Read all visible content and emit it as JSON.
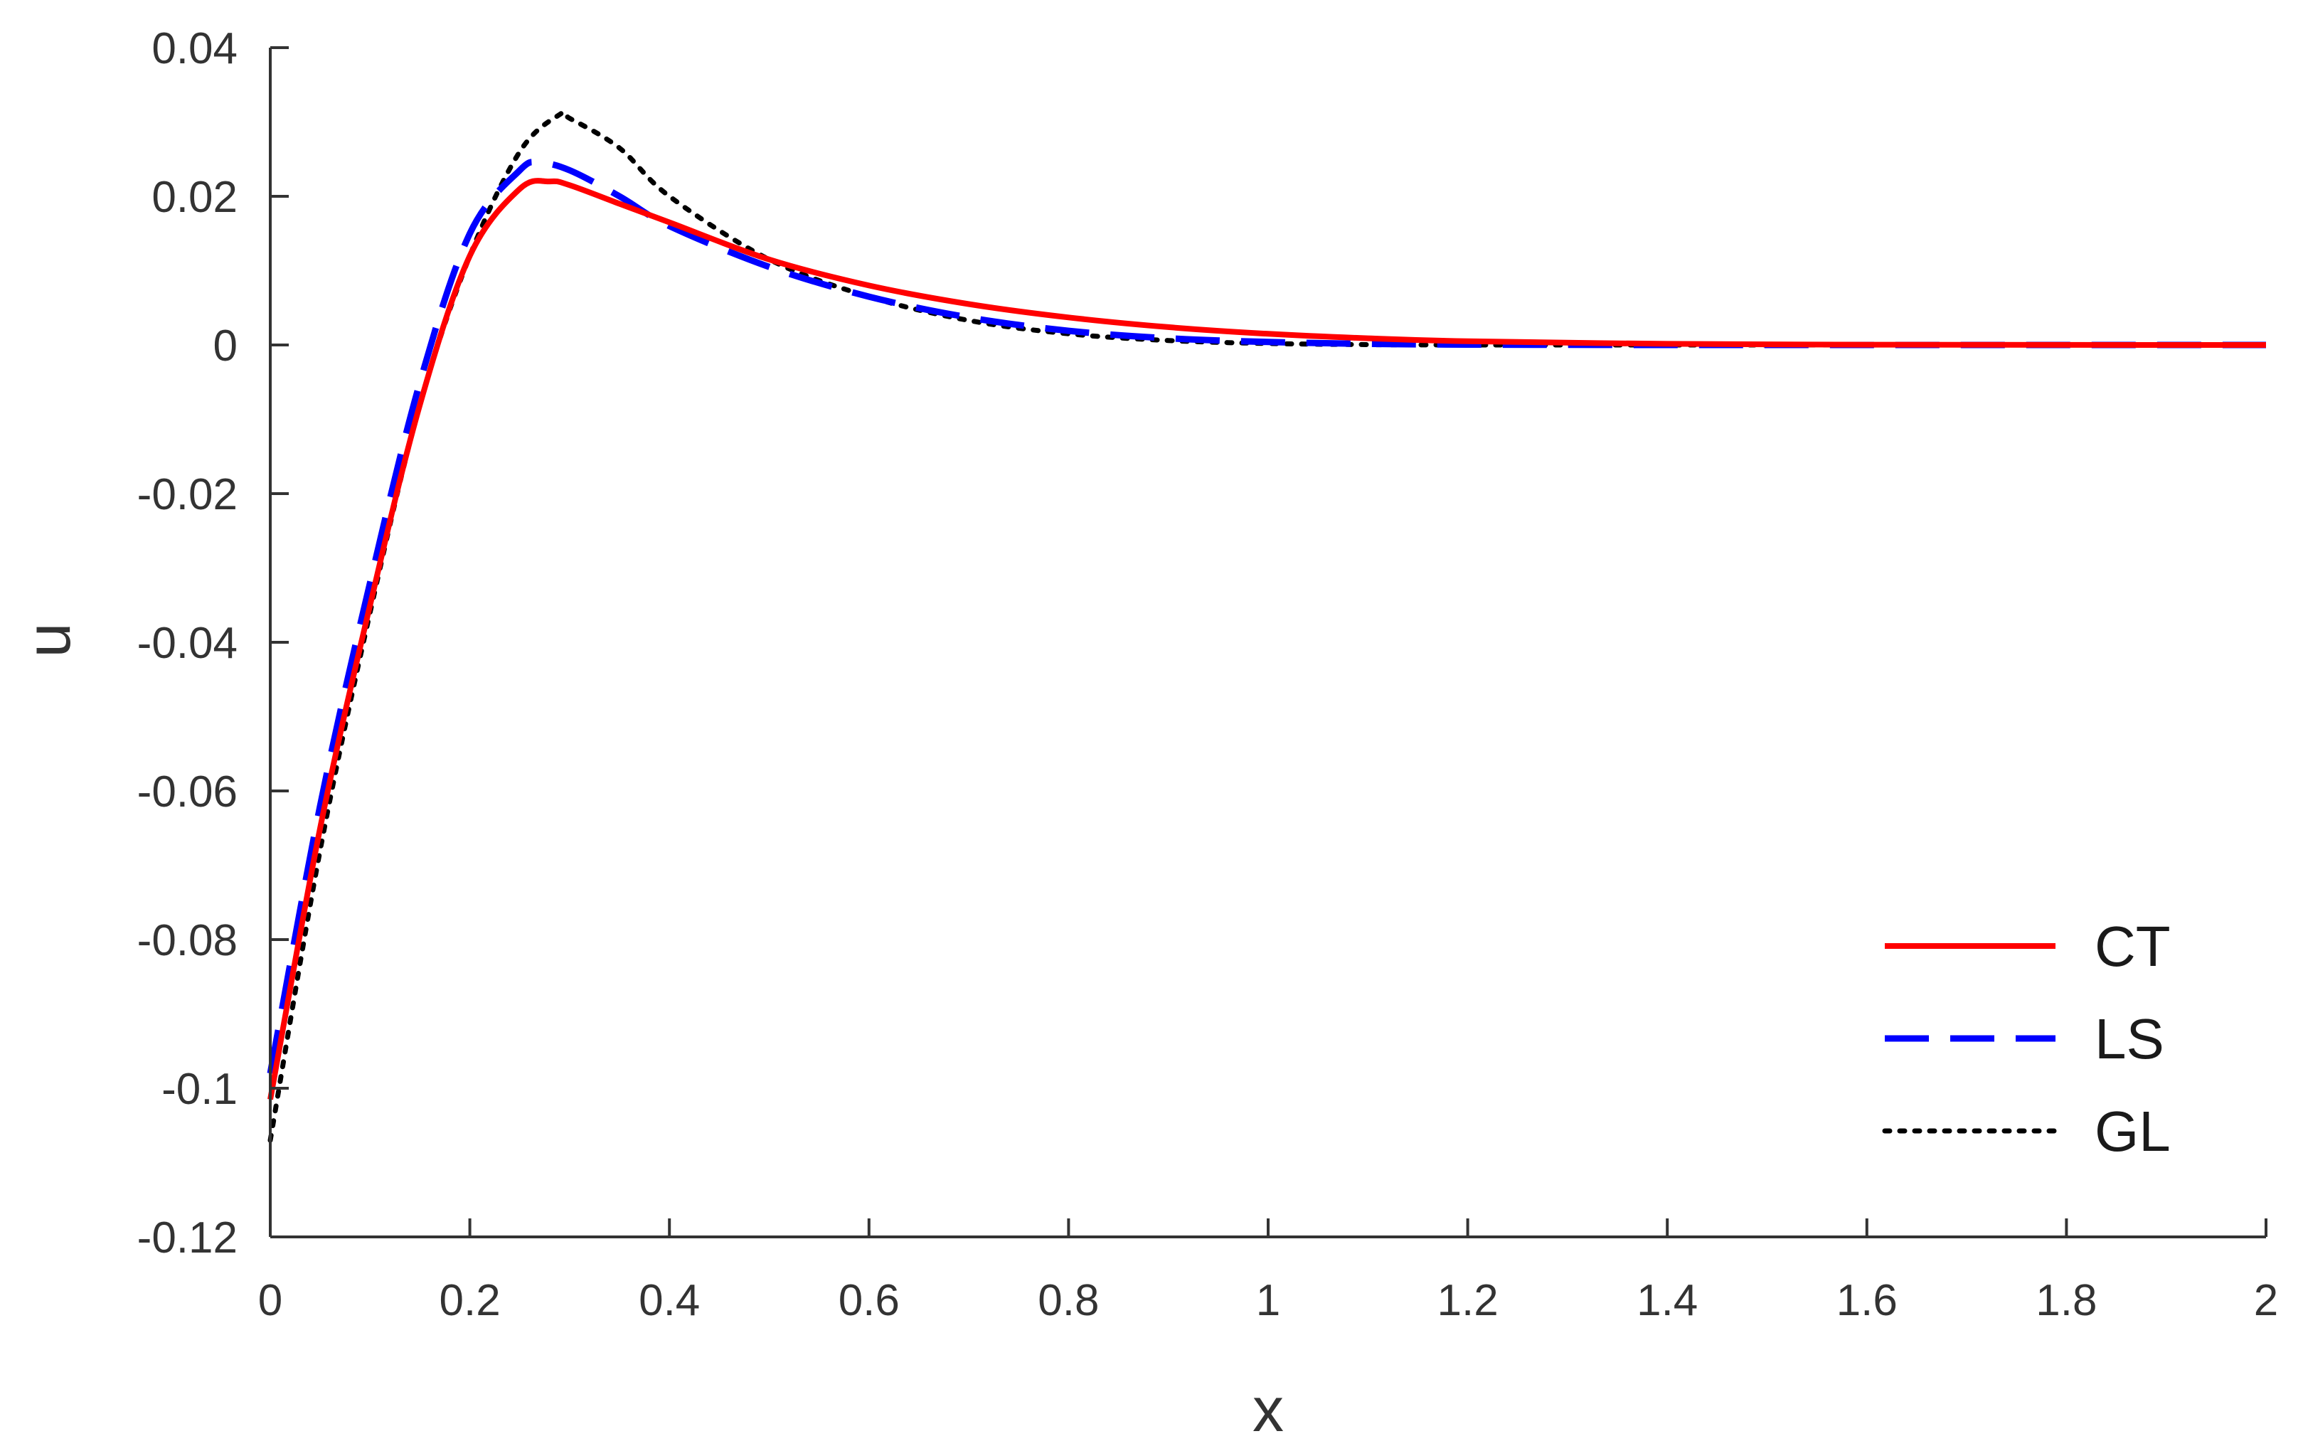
{
  "chart_data": {
    "type": "line",
    "title": "",
    "xlabel": "x",
    "ylabel": "u",
    "xlim": [
      0,
      2
    ],
    "ylim": [
      -0.12,
      0.04
    ],
    "xticks": [
      0,
      0.2,
      0.4,
      0.6,
      0.8,
      1,
      1.2,
      1.4,
      1.6,
      1.8,
      2
    ],
    "xtick_labels": [
      "0",
      "0.2",
      "0.4",
      "0.6",
      "0.8",
      "1",
      "1.2",
      "1.4",
      "1.6",
      "1.8",
      "2"
    ],
    "yticks": [
      -0.12,
      -0.1,
      -0.08,
      -0.06,
      -0.04,
      -0.02,
      0,
      0.02,
      0.04
    ],
    "ytick_labels": [
      "-0.12",
      "-0.1",
      "-0.08",
      "-0.06",
      "-0.04",
      "-0.02",
      "0",
      "0.02",
      "0.04"
    ],
    "grid": false,
    "legend_position": "bottom-right",
    "series": [
      {
        "name": "CT",
        "color": "#ff0000",
        "style": "solid",
        "x": [
          0,
          0.05,
          0.1,
          0.15,
          0.2,
          0.25,
          0.28,
          0.3,
          0.35,
          0.4,
          0.5,
          0.6,
          0.7,
          0.8,
          0.9,
          1.0,
          1.1,
          1.2,
          1.4,
          1.6,
          1.8,
          2.0
        ],
        "y": [
          -0.1015,
          -0.065,
          -0.035,
          -0.008,
          0.012,
          0.021,
          0.022,
          0.0215,
          0.019,
          0.0165,
          0.0115,
          0.008,
          0.0055,
          0.0037,
          0.0024,
          0.0015,
          0.0009,
          0.0005,
          0.00015,
          4e-05,
          1e-05,
          0
        ]
      },
      {
        "name": "LS",
        "color": "#0000ff",
        "style": "dashed",
        "x": [
          0,
          0.05,
          0.1,
          0.15,
          0.2,
          0.25,
          0.27,
          0.3,
          0.35,
          0.4,
          0.5,
          0.6,
          0.7,
          0.8,
          0.9,
          1.0,
          1.1,
          1.2,
          1.4,
          1.6,
          1.8,
          2.0
        ],
        "y": [
          -0.098,
          -0.062,
          -0.032,
          -0.005,
          0.015,
          0.0235,
          0.0245,
          0.0235,
          0.02,
          0.016,
          0.0105,
          0.0065,
          0.0037,
          0.0019,
          0.0009,
          0.0004,
          0.00015,
          5e-05,
          0,
          0,
          0,
          0
        ]
      },
      {
        "name": "GL",
        "color": "#000000",
        "style": "dotted",
        "x": [
          0,
          0.05,
          0.1,
          0.15,
          0.2,
          0.25,
          0.29,
          0.3,
          0.35,
          0.4,
          0.5,
          0.6,
          0.7,
          0.8,
          0.9,
          1.0,
          1.1,
          1.2,
          1.4,
          1.6,
          1.8,
          2.0
        ],
        "y": [
          -0.107,
          -0.068,
          -0.036,
          -0.008,
          0.012,
          0.026,
          0.031,
          0.0305,
          0.0265,
          0.02,
          0.0115,
          0.0065,
          0.0033,
          0.0015,
          0.0006,
          0.0002,
          5e-05,
          0,
          0,
          0,
          0,
          0
        ]
      }
    ]
  }
}
